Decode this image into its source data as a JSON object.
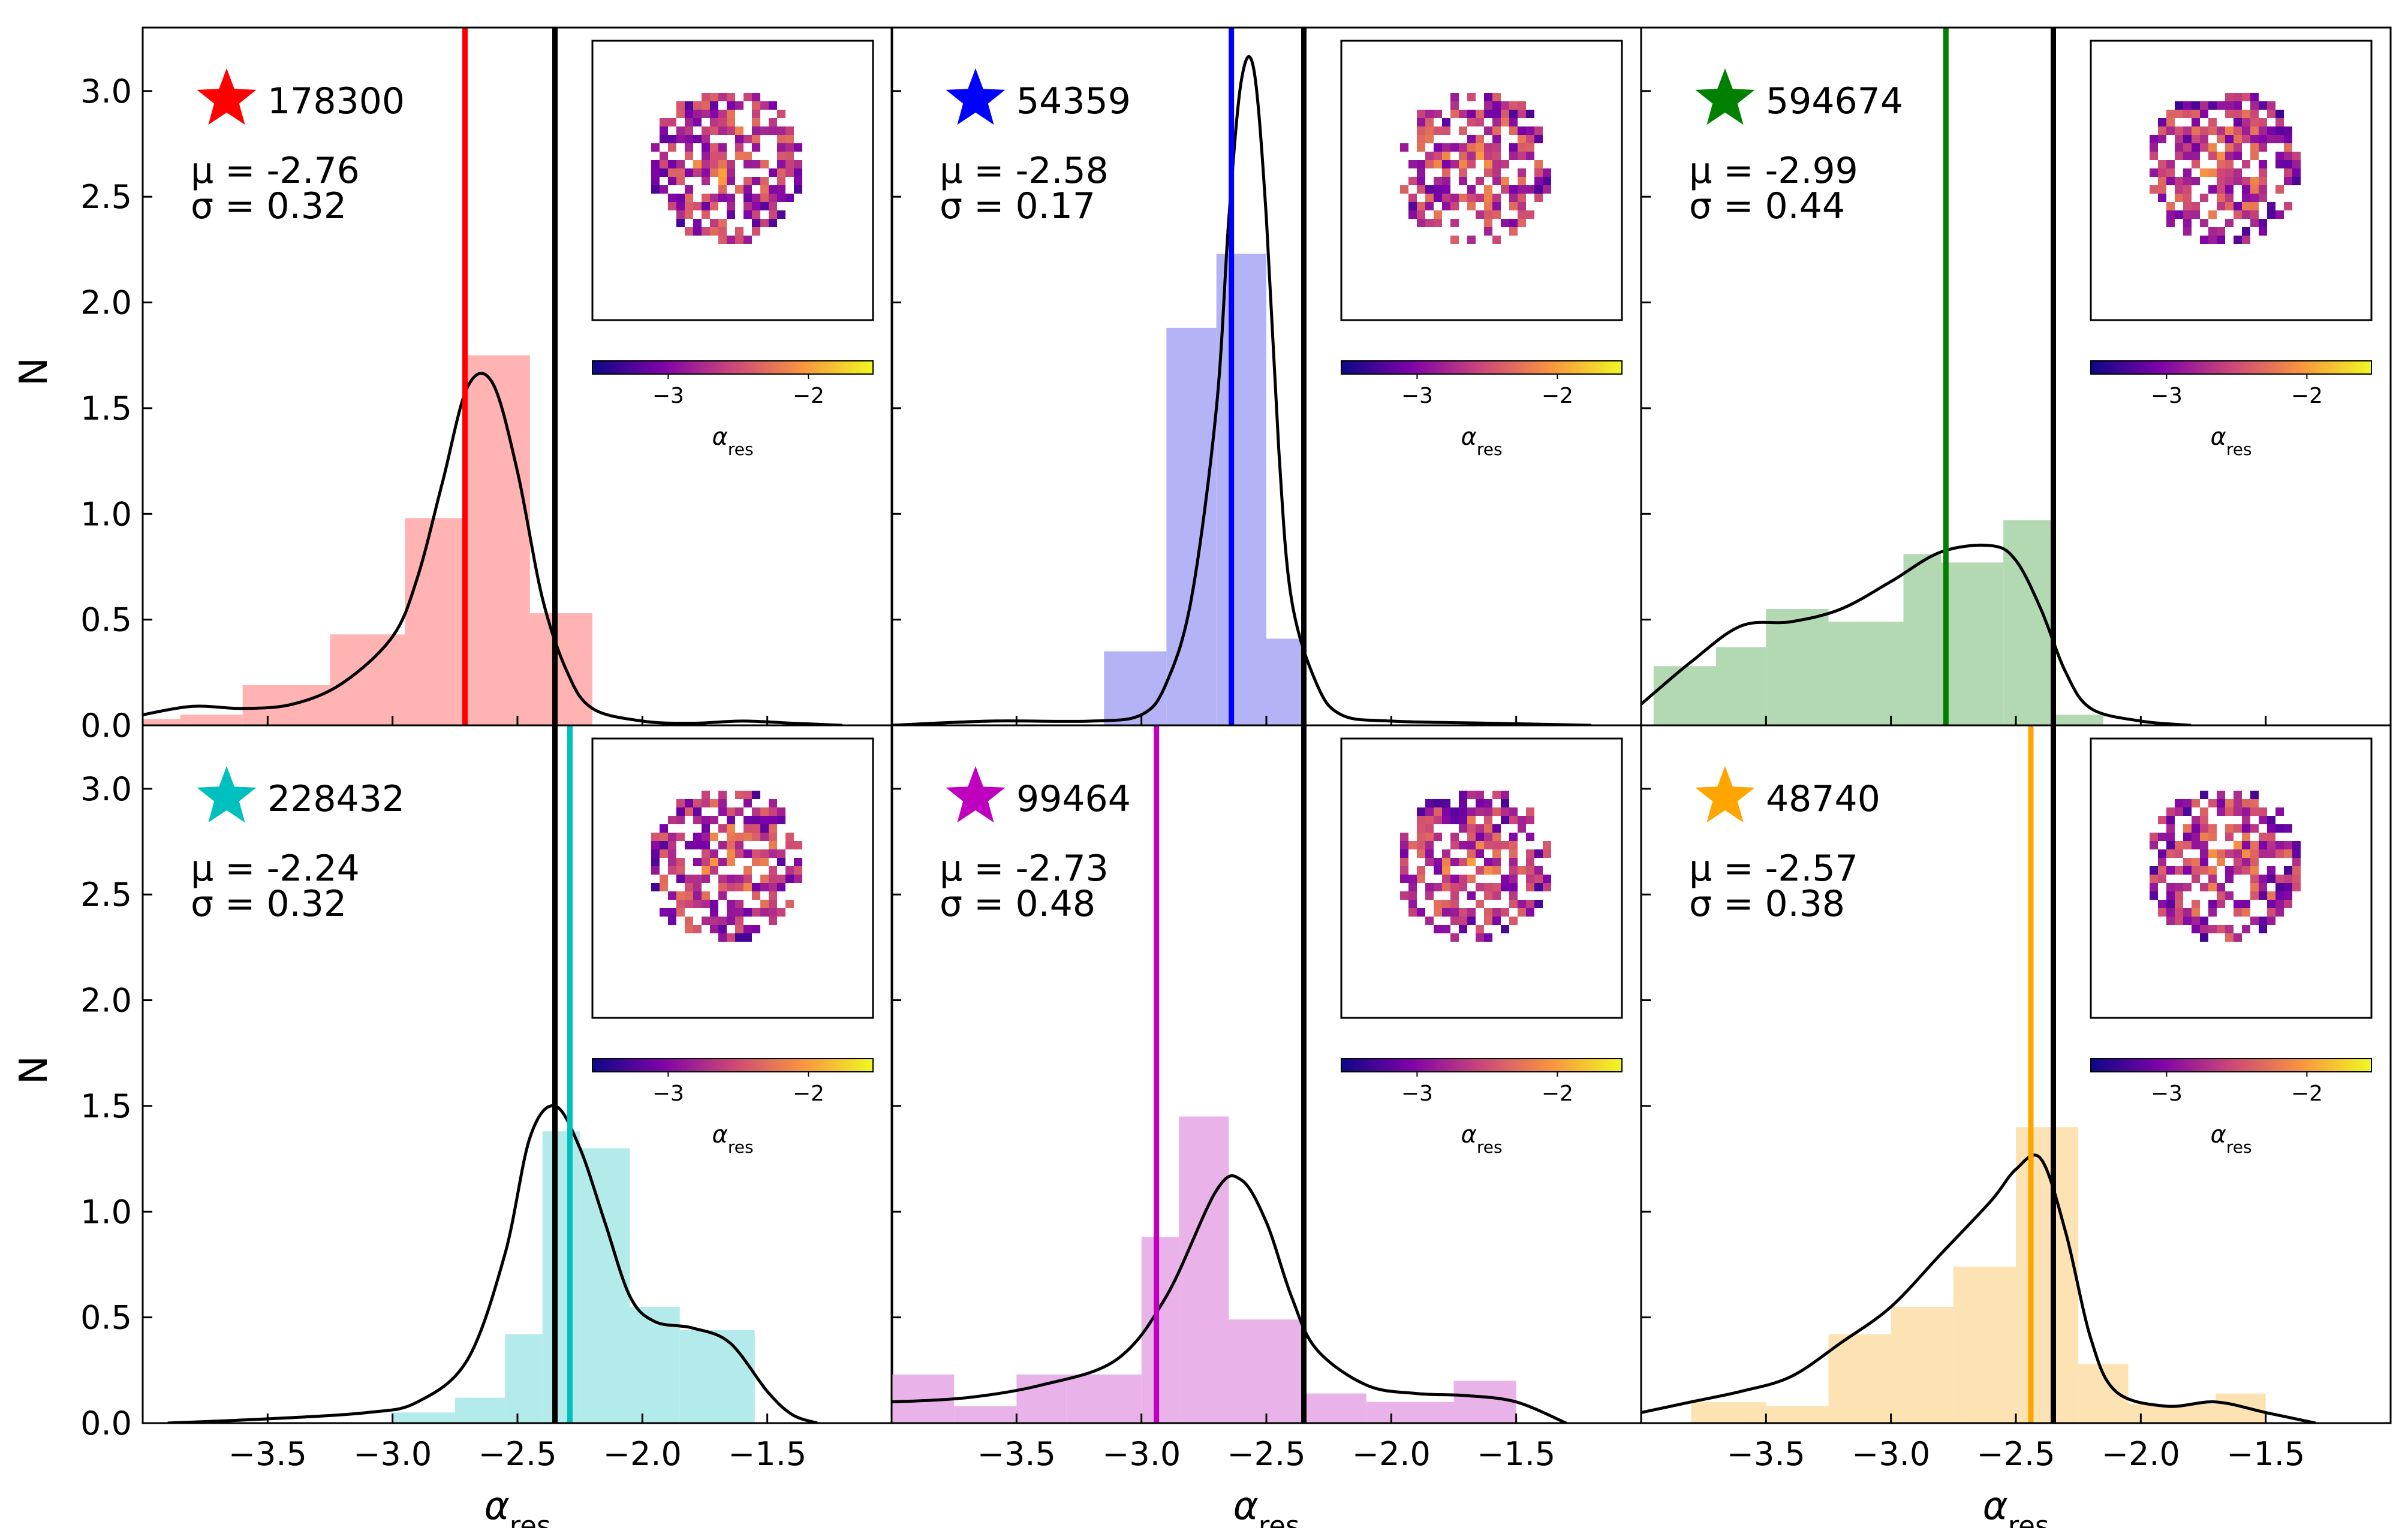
{
  "figure": {
    "xlabel": "α_res",
    "ylabel": "N",
    "colorbar_label": "α_res",
    "colorbar_ticks": [
      "−3",
      "−2"
    ]
  },
  "chart_data": [
    {
      "type": "bar",
      "id": "178300",
      "color": "#ff0000",
      "fill": "#ffb3b3",
      "mu_label": "μ = -2.76",
      "sigma_label": "σ = 0.32",
      "median_line": -2.71,
      "black_line": -2.35,
      "bin_edges": [
        -4.0,
        -3.85,
        -3.6,
        -3.25,
        -2.95,
        -2.7,
        -2.45,
        -2.2
      ],
      "values": [
        0.03,
        0.05,
        0.19,
        0.43,
        0.98,
        1.75,
        0.53
      ],
      "kde_x": [
        -4.0,
        -3.8,
        -3.6,
        -3.4,
        -3.2,
        -3.0,
        -2.9,
        -2.8,
        -2.7,
        -2.6,
        -2.5,
        -2.4,
        -2.3,
        -2.2,
        -2.0,
        -1.8,
        -1.6,
        -1.4,
        -1.2
      ],
      "kde_y": [
        0.05,
        0.09,
        0.08,
        0.1,
        0.2,
        0.42,
        0.7,
        1.15,
        1.6,
        1.62,
        1.2,
        0.6,
        0.25,
        0.08,
        0.02,
        0.01,
        0.02,
        0.01,
        0.0
      ],
      "x_tick_labels": [],
      "y_tick_labels": [
        "0.0",
        "0.5",
        "1.0",
        "1.5",
        "2.0",
        "2.5",
        "3.0"
      ],
      "xlim": [
        -4.0,
        -1.0
      ],
      "ylim": [
        0,
        3.3
      ]
    },
    {
      "type": "bar",
      "id": "54359",
      "color": "#0000ff",
      "fill": "#b3b3f5",
      "mu_label": "μ = -2.58",
      "sigma_label": "σ = 0.17",
      "median_line": -2.64,
      "black_line": -2.35,
      "bin_edges": [
        -3.15,
        -2.9,
        -2.7,
        -2.5,
        -2.35,
        -2.2
      ],
      "values": [
        0.35,
        1.88,
        2.23,
        0.41,
        0.0
      ],
      "kde_x": [
        -4.0,
        -3.6,
        -3.2,
        -3.0,
        -2.9,
        -2.8,
        -2.7,
        -2.65,
        -2.6,
        -2.55,
        -2.5,
        -2.45,
        -2.4,
        -2.3,
        -2.2,
        -2.0,
        -1.6,
        -1.2
      ],
      "kde_y": [
        0.0,
        0.02,
        0.02,
        0.05,
        0.2,
        0.6,
        1.5,
        2.4,
        3.05,
        3.1,
        2.4,
        1.3,
        0.6,
        0.2,
        0.05,
        0.02,
        0.01,
        0.0
      ],
      "x_tick_labels": [],
      "y_tick_labels": [],
      "xlim": [
        -4.0,
        -1.0
      ],
      "ylim": [
        0,
        3.3
      ]
    },
    {
      "type": "bar",
      "id": "594674",
      "color": "#008000",
      "fill": "#b3d9b3",
      "mu_label": "μ = -2.99",
      "sigma_label": "σ = 0.44",
      "median_line": -2.78,
      "black_line": -2.35,
      "bin_edges": [
        -3.95,
        -3.7,
        -3.5,
        -3.25,
        -2.95,
        -2.8,
        -2.55,
        -2.35,
        -2.15
      ],
      "values": [
        0.28,
        0.37,
        0.55,
        0.49,
        0.81,
        0.77,
        0.97,
        0.05
      ],
      "kde_x": [
        -4.0,
        -3.8,
        -3.6,
        -3.4,
        -3.2,
        -3.0,
        -2.8,
        -2.6,
        -2.5,
        -2.4,
        -2.3,
        -2.2,
        -2.0,
        -1.8
      ],
      "kde_y": [
        0.1,
        0.3,
        0.47,
        0.49,
        0.55,
        0.68,
        0.82,
        0.85,
        0.78,
        0.55,
        0.25,
        0.08,
        0.02,
        0.0
      ],
      "x_tick_labels": [],
      "y_tick_labels": [],
      "xlim": [
        -4.0,
        -1.0
      ],
      "ylim": [
        0,
        3.3
      ]
    },
    {
      "type": "bar",
      "id": "228432",
      "color": "#00bfbf",
      "fill": "#b3ebeb",
      "mu_label": "μ = -2.24",
      "sigma_label": "σ = 0.32",
      "median_line": -2.29,
      "black_line": -2.35,
      "bin_edges": [
        -3.0,
        -2.75,
        -2.55,
        -2.4,
        -2.25,
        -2.05,
        -1.85,
        -1.55
      ],
      "values": [
        0.05,
        0.12,
        0.42,
        1.38,
        1.3,
        0.55,
        0.44
      ],
      "kde_x": [
        -3.9,
        -3.5,
        -3.1,
        -2.9,
        -2.7,
        -2.55,
        -2.45,
        -2.35,
        -2.25,
        -2.15,
        -2.05,
        -1.95,
        -1.8,
        -1.65,
        -1.5,
        -1.4,
        -1.3
      ],
      "kde_y": [
        0.0,
        0.02,
        0.05,
        0.1,
        0.3,
        0.8,
        1.35,
        1.5,
        1.3,
        0.95,
        0.6,
        0.48,
        0.45,
        0.38,
        0.15,
        0.04,
        0.0
      ],
      "x_tick_labels": [
        "−3.5",
        "−3.0",
        "−2.5",
        "−2.0",
        "−1.5"
      ],
      "y_tick_labels": [
        "0.0",
        "0.5",
        "1.0",
        "1.5",
        "2.0",
        "2.5",
        "3.0"
      ],
      "xlim": [
        -4.0,
        -1.0
      ],
      "ylim": [
        0,
        3.3
      ]
    },
    {
      "type": "bar",
      "id": "99464",
      "color": "#bf00bf",
      "fill": "#e9b3e9",
      "mu_label": "μ = -2.73",
      "sigma_label": "σ = 0.48",
      "median_line": -2.94,
      "black_line": -2.35,
      "bin_edges": [
        -4.0,
        -3.75,
        -3.5,
        -3.3,
        -3.0,
        -2.85,
        -2.65,
        -2.35,
        -2.1,
        -1.9,
        -1.75,
        -1.5
      ],
      "values": [
        0.23,
        0.08,
        0.23,
        0.23,
        0.88,
        1.45,
        0.49,
        0.14,
        0.1,
        0.1,
        0.2
      ],
      "kde_x": [
        -4.0,
        -3.7,
        -3.4,
        -3.1,
        -2.9,
        -2.7,
        -2.6,
        -2.5,
        -2.4,
        -2.3,
        -2.1,
        -1.9,
        -1.7,
        -1.5,
        -1.3
      ],
      "kde_y": [
        0.1,
        0.12,
        0.18,
        0.3,
        0.6,
        1.1,
        1.15,
        0.95,
        0.6,
        0.35,
        0.18,
        0.14,
        0.13,
        0.1,
        0.0
      ],
      "x_tick_labels": [
        "−3.5",
        "−3.0",
        "−2.5",
        "−2.0",
        "−1.5"
      ],
      "y_tick_labels": [],
      "xlim": [
        -4.0,
        -1.0
      ],
      "ylim": [
        0,
        3.3
      ]
    },
    {
      "type": "bar",
      "id": "48740",
      "color": "#ffa500",
      "fill": "#fde3b3",
      "mu_label": "μ = -2.57",
      "sigma_label": "σ = 0.38",
      "median_line": -2.44,
      "black_line": -2.35,
      "bin_edges": [
        -3.8,
        -3.5,
        -3.25,
        -3.0,
        -2.75,
        -2.5,
        -2.25,
        -2.05,
        -1.85,
        -1.7,
        -1.5
      ],
      "values": [
        0.1,
        0.08,
        0.42,
        0.55,
        0.74,
        1.4,
        0.28,
        0.09,
        0.09,
        0.14
      ],
      "kde_x": [
        -4.0,
        -3.8,
        -3.6,
        -3.4,
        -3.2,
        -3.0,
        -2.8,
        -2.6,
        -2.5,
        -2.4,
        -2.3,
        -2.2,
        -2.1,
        -1.9,
        -1.7,
        -1.5,
        -1.3
      ],
      "kde_y": [
        0.05,
        0.1,
        0.15,
        0.22,
        0.38,
        0.55,
        0.8,
        1.05,
        1.2,
        1.25,
        0.9,
        0.4,
        0.15,
        0.08,
        0.1,
        0.05,
        0.0
      ],
      "x_tick_labels": [
        "−3.5",
        "−3.0",
        "−2.5",
        "−2.0",
        "−1.5"
      ],
      "y_tick_labels": [],
      "xlim": [
        -4.0,
        -1.0
      ],
      "ylim": [
        0,
        3.3
      ]
    }
  ]
}
